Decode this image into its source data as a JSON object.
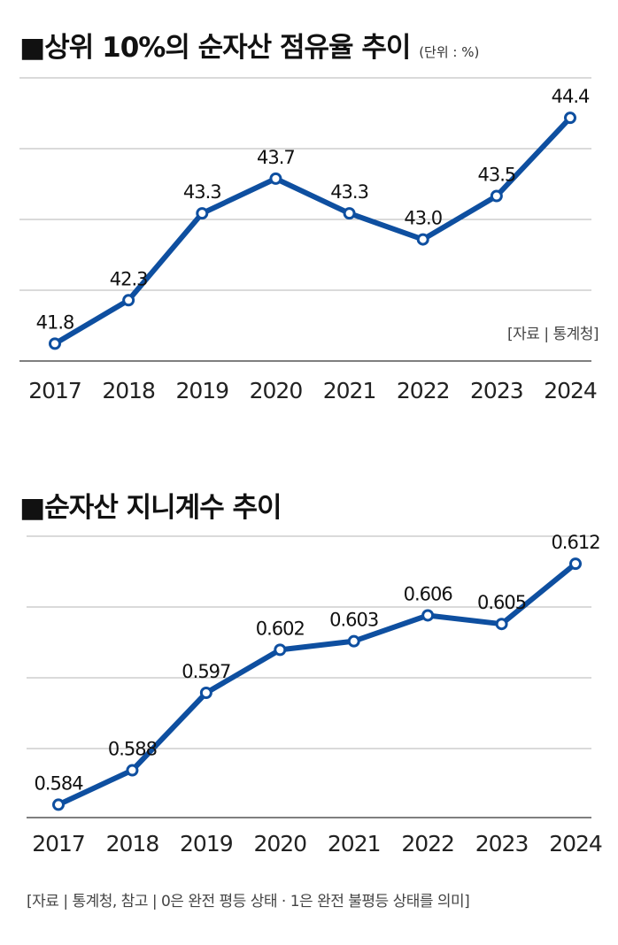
{
  "chart_data": [
    {
      "type": "line",
      "title": "■상위 10%의 순자산 점유율 추이",
      "unit_label": "(단위 : %)",
      "categories": [
        "2017",
        "2018",
        "2019",
        "2020",
        "2021",
        "2022",
        "2023",
        "2024"
      ],
      "values": [
        41.8,
        42.3,
        43.3,
        43.7,
        43.3,
        43.0,
        43.5,
        44.4
      ],
      "value_labels": [
        "41.8",
        "42.3",
        "43.3",
        "43.7",
        "43.3",
        "43.0",
        "43.5",
        "44.4"
      ],
      "ylim": [
        41.6,
        44.86
      ],
      "source": "[자료 | 통계청]",
      "color": "#0e4fa0"
    },
    {
      "type": "line",
      "title": "■순자산 지니계수 추이",
      "categories": [
        "2017",
        "2018",
        "2019",
        "2020",
        "2021",
        "2022",
        "2023",
        "2024"
      ],
      "values": [
        0.584,
        0.588,
        0.597,
        0.602,
        0.603,
        0.606,
        0.605,
        0.612
      ],
      "value_labels": [
        "0.584",
        "0.588",
        "0.597",
        "0.602",
        "0.603",
        "0.606",
        "0.605",
        "0.612"
      ],
      "ylim": [
        0.5825,
        0.6152
      ],
      "source": "[자료 | 통계청, 참고 | 0은 완전 평등 상태 · 1은 완전 불평등 상태를 의미]",
      "color": "#0e4fa0"
    }
  ]
}
